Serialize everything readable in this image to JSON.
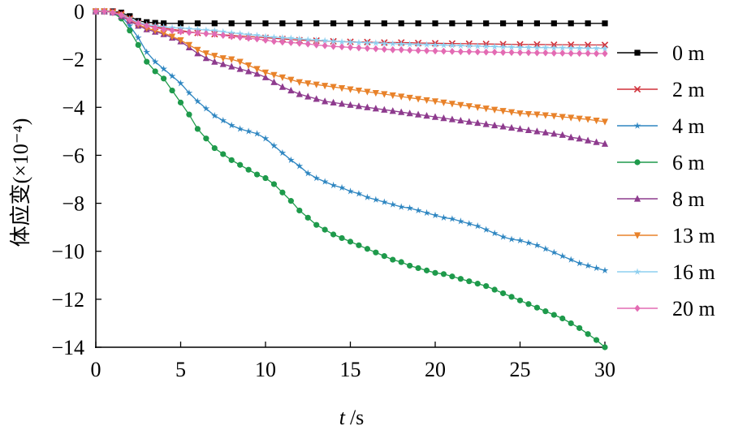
{
  "chart_data": {
    "type": "line",
    "xlabel_var": "t",
    "xlabel_unit": "/s",
    "ylabel": "体应变(×10⁻⁴)",
    "xlim": [
      0,
      30
    ],
    "ylim": [
      -14,
      0
    ],
    "xticks": [
      0,
      5,
      10,
      15,
      20,
      25,
      30
    ],
    "yticks": [
      0,
      -2,
      -4,
      -6,
      -8,
      -10,
      -12,
      -14
    ],
    "ytick_labels": [
      "0",
      "−2",
      "−4",
      "−6",
      "−8",
      "−10",
      "−12",
      "−14"
    ],
    "grid": false,
    "legend_position": "right",
    "series": [
      {
        "name": "0 m",
        "color": "#000000",
        "marker": "square",
        "x": [
          0,
          0.5,
          1,
          1.5,
          2,
          2.5,
          3,
          3.5,
          4,
          5,
          6,
          7,
          8,
          9,
          10,
          11,
          12,
          13,
          14,
          15,
          16,
          17,
          18,
          19,
          20,
          21,
          22,
          23,
          24,
          25,
          26,
          27,
          28,
          29,
          30
        ],
        "y": [
          0,
          0,
          0,
          -0.05,
          -0.2,
          -0.4,
          -0.45,
          -0.48,
          -0.5,
          -0.5,
          -0.5,
          -0.5,
          -0.5,
          -0.5,
          -0.5,
          -0.5,
          -0.5,
          -0.5,
          -0.5,
          -0.5,
          -0.5,
          -0.5,
          -0.5,
          -0.5,
          -0.5,
          -0.5,
          -0.5,
          -0.5,
          -0.5,
          -0.5,
          -0.5,
          -0.5,
          -0.5,
          -0.5,
          -0.5
        ]
      },
      {
        "name": "2 m",
        "color": "#d0313a",
        "marker": "x",
        "x": [
          0,
          0.5,
          1,
          1.5,
          2,
          2.5,
          3,
          3.5,
          4,
          5,
          6,
          7,
          8,
          9,
          10,
          11,
          12,
          13,
          14,
          15,
          16,
          17,
          18,
          19,
          20,
          21,
          22,
          23,
          24,
          25,
          26,
          27,
          28,
          29,
          30
        ],
        "y": [
          0,
          0,
          0,
          -0.1,
          -0.3,
          -0.5,
          -0.6,
          -0.65,
          -0.7,
          -0.8,
          -0.9,
          -0.95,
          -1.0,
          -1.05,
          -1.1,
          -1.15,
          -1.2,
          -1.22,
          -1.25,
          -1.27,
          -1.28,
          -1.3,
          -1.3,
          -1.32,
          -1.33,
          -1.34,
          -1.35,
          -1.36,
          -1.37,
          -1.38,
          -1.38,
          -1.39,
          -1.39,
          -1.4,
          -1.4
        ]
      },
      {
        "name": "4 m",
        "color": "#2e86c1",
        "marker": "star",
        "x": [
          0,
          0.5,
          1,
          1.5,
          2,
          2.5,
          3,
          3.5,
          4,
          4.5,
          5,
          5.5,
          6,
          6.5,
          7,
          7.5,
          8,
          8.5,
          9,
          9.5,
          10,
          10.5,
          11,
          11.5,
          12,
          12.5,
          13,
          13.5,
          14,
          14.5,
          15,
          15.5,
          16,
          16.5,
          17,
          17.5,
          18,
          18.5,
          19,
          19.5,
          20,
          20.5,
          21,
          21.5,
          22,
          22.5,
          23,
          23.5,
          24,
          24.5,
          25,
          25.5,
          26,
          26.5,
          27,
          27.5,
          28,
          28.5,
          29,
          29.5,
          30
        ],
        "y": [
          0,
          0,
          -0.05,
          -0.2,
          -0.6,
          -1.1,
          -1.7,
          -2.1,
          -2.4,
          -2.7,
          -3.0,
          -3.4,
          -3.75,
          -4.05,
          -4.35,
          -4.55,
          -4.75,
          -4.9,
          -5.0,
          -5.1,
          -5.3,
          -5.6,
          -5.9,
          -6.2,
          -6.45,
          -6.75,
          -6.95,
          -7.1,
          -7.25,
          -7.35,
          -7.5,
          -7.6,
          -7.75,
          -7.85,
          -7.95,
          -8.05,
          -8.15,
          -8.2,
          -8.3,
          -8.4,
          -8.5,
          -8.6,
          -8.65,
          -8.75,
          -8.85,
          -8.95,
          -9.1,
          -9.25,
          -9.4,
          -9.5,
          -9.55,
          -9.65,
          -9.75,
          -9.9,
          -10.05,
          -10.2,
          -10.35,
          -10.5,
          -10.6,
          -10.7,
          -10.8
        ]
      },
      {
        "name": "6 m",
        "color": "#1e9a4b",
        "marker": "circle",
        "x": [
          0,
          0.5,
          1,
          1.5,
          2,
          2.5,
          3,
          3.5,
          4,
          4.5,
          5,
          5.5,
          6,
          6.5,
          7,
          7.5,
          8,
          8.5,
          9,
          9.5,
          10,
          10.5,
          11,
          11.5,
          12,
          12.5,
          13,
          13.5,
          14,
          14.5,
          15,
          15.5,
          16,
          16.5,
          17,
          17.5,
          18,
          18.5,
          19,
          19.5,
          20,
          20.5,
          21,
          21.5,
          22,
          22.5,
          23,
          23.5,
          24,
          24.5,
          25,
          25.5,
          26,
          26.5,
          27,
          27.5,
          28,
          28.5,
          29,
          29.5,
          30
        ],
        "y": [
          0,
          0,
          -0.05,
          -0.3,
          -0.8,
          -1.4,
          -2.1,
          -2.5,
          -2.8,
          -3.3,
          -3.8,
          -4.3,
          -4.9,
          -5.3,
          -5.7,
          -5.95,
          -6.2,
          -6.4,
          -6.6,
          -6.8,
          -6.95,
          -7.2,
          -7.55,
          -7.9,
          -8.3,
          -8.6,
          -8.9,
          -9.1,
          -9.3,
          -9.45,
          -9.6,
          -9.75,
          -9.9,
          -10.05,
          -10.2,
          -10.35,
          -10.45,
          -10.6,
          -10.7,
          -10.8,
          -10.9,
          -10.95,
          -11.05,
          -11.15,
          -11.25,
          -11.35,
          -11.45,
          -11.6,
          -11.75,
          -11.9,
          -12.05,
          -12.2,
          -12.35,
          -12.5,
          -12.65,
          -12.8,
          -13.0,
          -13.2,
          -13.45,
          -13.7,
          -14.0
        ]
      },
      {
        "name": "8 m",
        "color": "#8e3b8e",
        "marker": "triangle-up",
        "x": [
          0,
          0.5,
          1,
          1.5,
          2,
          2.5,
          3,
          3.5,
          4,
          4.5,
          5,
          5.5,
          6,
          6.5,
          7,
          7.5,
          8,
          8.5,
          9,
          9.5,
          10,
          10.5,
          11,
          11.5,
          12,
          12.5,
          13,
          13.5,
          14,
          14.5,
          15,
          15.5,
          16,
          16.5,
          17,
          17.5,
          18,
          18.5,
          19,
          19.5,
          20,
          20.5,
          21,
          21.5,
          22,
          22.5,
          23,
          23.5,
          24,
          24.5,
          25,
          25.5,
          26,
          26.5,
          27,
          27.5,
          28,
          28.5,
          29,
          29.5,
          30
        ],
        "y": [
          0,
          0,
          -0.05,
          -0.2,
          -0.4,
          -0.6,
          -0.75,
          -0.85,
          -0.95,
          -1.1,
          -1.25,
          -1.5,
          -1.75,
          -1.95,
          -2.1,
          -2.2,
          -2.3,
          -2.4,
          -2.5,
          -2.6,
          -2.75,
          -2.95,
          -3.15,
          -3.3,
          -3.45,
          -3.55,
          -3.65,
          -3.75,
          -3.8,
          -3.85,
          -3.9,
          -3.95,
          -4.0,
          -4.05,
          -4.1,
          -4.15,
          -4.2,
          -4.25,
          -4.3,
          -4.35,
          -4.4,
          -4.45,
          -4.5,
          -4.55,
          -4.6,
          -4.65,
          -4.7,
          -4.75,
          -4.8,
          -4.85,
          -4.9,
          -4.95,
          -5.0,
          -5.05,
          -5.1,
          -5.15,
          -5.25,
          -5.3,
          -5.38,
          -5.45,
          -5.52
        ]
      },
      {
        "name": "13 m",
        "color": "#e8822a",
        "marker": "triangle-down",
        "x": [
          0,
          0.5,
          1,
          1.5,
          2,
          2.5,
          3,
          3.5,
          4,
          4.5,
          5,
          5.5,
          6,
          6.5,
          7,
          7.5,
          8,
          8.5,
          9,
          9.5,
          10,
          10.5,
          11,
          11.5,
          12,
          12.5,
          13,
          13.5,
          14,
          14.5,
          15,
          15.5,
          16,
          16.5,
          17,
          17.5,
          18,
          18.5,
          19,
          19.5,
          20,
          20.5,
          21,
          21.5,
          22,
          22.5,
          23,
          23.5,
          24,
          24.5,
          25,
          25.5,
          26,
          26.5,
          27,
          27.5,
          28,
          28.5,
          29,
          29.5,
          30
        ],
        "y": [
          0,
          0,
          -0.05,
          -0.15,
          -0.35,
          -0.55,
          -0.7,
          -0.8,
          -0.9,
          -1.05,
          -1.2,
          -1.4,
          -1.6,
          -1.75,
          -1.85,
          -1.95,
          -2.0,
          -2.1,
          -2.25,
          -2.4,
          -2.55,
          -2.65,
          -2.75,
          -2.85,
          -2.95,
          -3.0,
          -3.05,
          -3.1,
          -3.15,
          -3.2,
          -3.25,
          -3.3,
          -3.35,
          -3.4,
          -3.45,
          -3.5,
          -3.55,
          -3.6,
          -3.65,
          -3.7,
          -3.75,
          -3.8,
          -3.85,
          -3.9,
          -3.95,
          -4.0,
          -4.05,
          -4.1,
          -4.15,
          -4.2,
          -4.25,
          -4.28,
          -4.3,
          -4.33,
          -4.36,
          -4.4,
          -4.43,
          -4.47,
          -4.5,
          -4.55,
          -4.6
        ]
      },
      {
        "name": "16 m",
        "color": "#8ecfef",
        "marker": "star",
        "x": [
          0,
          0.5,
          1,
          1.5,
          2,
          2.5,
          3,
          3.5,
          4,
          4.5,
          5,
          5.5,
          6,
          6.5,
          7,
          7.5,
          8,
          8.5,
          9,
          9.5,
          10,
          10.5,
          11,
          11.5,
          12,
          12.5,
          13,
          13.5,
          14,
          14.5,
          15,
          15.5,
          16,
          16.5,
          17,
          17.5,
          18,
          18.5,
          19,
          19.5,
          20,
          20.5,
          21,
          21.5,
          22,
          22.5,
          23,
          23.5,
          24,
          24.5,
          25,
          25.5,
          26,
          26.5,
          27,
          27.5,
          28,
          28.5,
          29,
          29.5,
          30
        ],
        "y": [
          0,
          0,
          -0.05,
          -0.15,
          -0.3,
          -0.45,
          -0.55,
          -0.6,
          -0.65,
          -0.68,
          -0.7,
          -0.72,
          -0.75,
          -0.78,
          -0.8,
          -0.85,
          -0.9,
          -0.93,
          -0.97,
          -1.0,
          -1.05,
          -1.08,
          -1.1,
          -1.12,
          -1.15,
          -1.18,
          -1.2,
          -1.22,
          -1.25,
          -1.27,
          -1.28,
          -1.3,
          -1.31,
          -1.32,
          -1.34,
          -1.35,
          -1.36,
          -1.37,
          -1.38,
          -1.39,
          -1.4,
          -1.41,
          -1.42,
          -1.43,
          -1.44,
          -1.45,
          -1.46,
          -1.47,
          -1.48,
          -1.49,
          -1.5,
          -1.5,
          -1.51,
          -1.51,
          -1.52,
          -1.52,
          -1.53,
          -1.53,
          -1.54,
          -1.54,
          -1.55
        ]
      },
      {
        "name": "20 m",
        "color": "#e36bb3",
        "marker": "diamond",
        "x": [
          0,
          0.5,
          1,
          1.5,
          2,
          2.5,
          3,
          3.5,
          4,
          4.5,
          5,
          5.5,
          6,
          6.5,
          7,
          7.5,
          8,
          8.5,
          9,
          9.5,
          10,
          10.5,
          11,
          11.5,
          12,
          12.5,
          13,
          13.5,
          14,
          14.5,
          15,
          15.5,
          16,
          16.5,
          17,
          17.5,
          18,
          18.5,
          19,
          19.5,
          20,
          20.5,
          21,
          21.5,
          22,
          22.5,
          23,
          23.5,
          24,
          24.5,
          25,
          25.5,
          26,
          26.5,
          27,
          27.5,
          28,
          28.5,
          29,
          29.5,
          30
        ],
        "y": [
          0,
          0,
          -0.05,
          -0.15,
          -0.35,
          -0.5,
          -0.6,
          -0.68,
          -0.75,
          -0.8,
          -0.85,
          -0.88,
          -0.9,
          -0.93,
          -0.95,
          -1.0,
          -1.05,
          -1.08,
          -1.12,
          -1.15,
          -1.2,
          -1.25,
          -1.28,
          -1.3,
          -1.33,
          -1.36,
          -1.4,
          -1.43,
          -1.46,
          -1.48,
          -1.5,
          -1.52,
          -1.54,
          -1.56,
          -1.58,
          -1.6,
          -1.6,
          -1.62,
          -1.63,
          -1.64,
          -1.65,
          -1.66,
          -1.67,
          -1.68,
          -1.68,
          -1.69,
          -1.7,
          -1.7,
          -1.71,
          -1.71,
          -1.72,
          -1.72,
          -1.73,
          -1.73,
          -1.74,
          -1.74,
          -1.75,
          -1.75,
          -1.75,
          -1.76,
          -1.76
        ]
      }
    ]
  }
}
